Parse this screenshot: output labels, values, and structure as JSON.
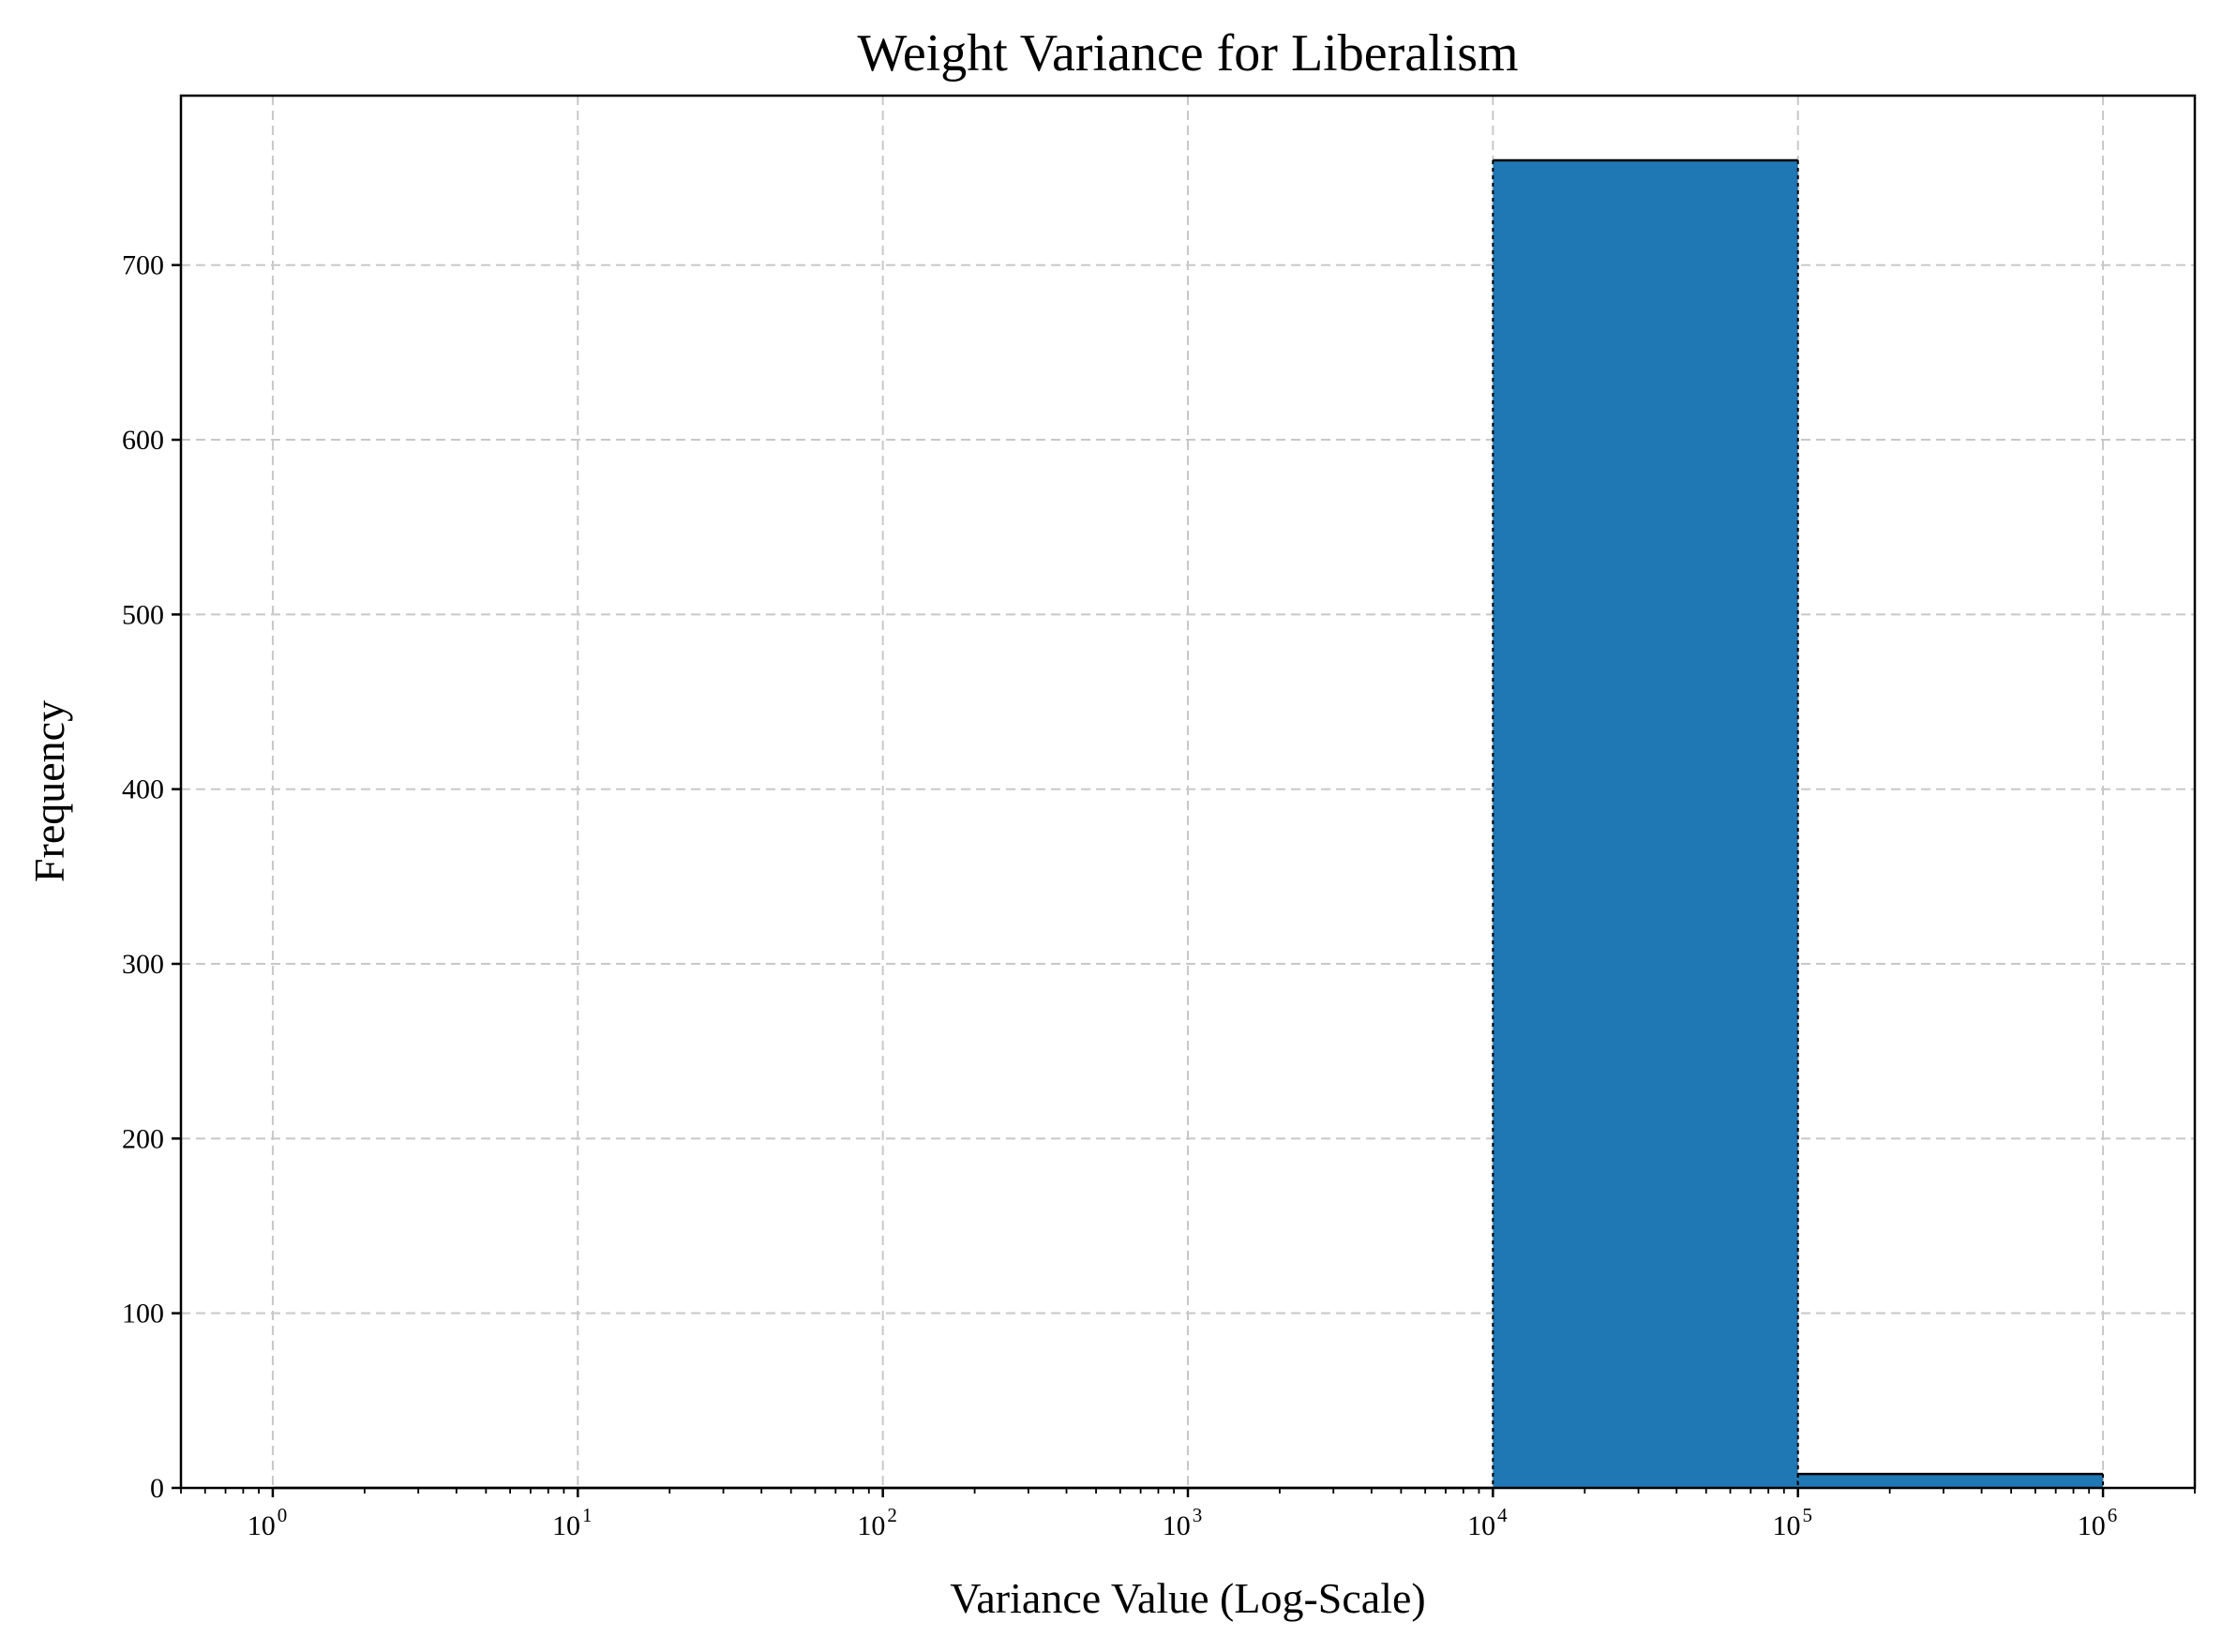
{
  "chart_data": {
    "type": "bar",
    "title": "Weight Variance for Liberalism",
    "xlabel": "Variance Value (Log-Scale)",
    "ylabel": "Frequency",
    "x_scale": "log",
    "xlim": [
      0.5,
      2000000
    ],
    "ylim": [
      0,
      797
    ],
    "grid": true,
    "bar_color": "#1f77b4",
    "edge_color": "#000000",
    "x_ticks": [
      {
        "value": 1,
        "base": "10",
        "exp": "0"
      },
      {
        "value": 10,
        "base": "10",
        "exp": "1"
      },
      {
        "value": 100,
        "base": "10",
        "exp": "2"
      },
      {
        "value": 1000,
        "base": "10",
        "exp": "3"
      },
      {
        "value": 10000,
        "base": "10",
        "exp": "4"
      },
      {
        "value": 100000,
        "base": "10",
        "exp": "5"
      },
      {
        "value": 1000000,
        "base": "10",
        "exp": "6"
      }
    ],
    "y_ticks": [
      0,
      100,
      200,
      300,
      400,
      500,
      600,
      700
    ],
    "bins": [
      {
        "x0": 1,
        "x1": 10,
        "count": 0
      },
      {
        "x0": 10,
        "x1": 100,
        "count": 0
      },
      {
        "x0": 100,
        "x1": 1000,
        "count": 0
      },
      {
        "x0": 1000,
        "x1": 10000,
        "count": 0
      },
      {
        "x0": 10000,
        "x1": 100000,
        "count": 760
      },
      {
        "x0": 100000,
        "x1": 1000000,
        "count": 8
      }
    ]
  }
}
